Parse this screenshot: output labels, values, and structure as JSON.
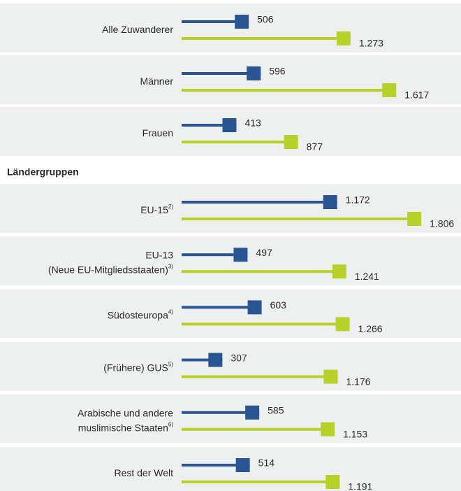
{
  "chart_data": [
    {
      "type": "paired-bar",
      "categories": [
        "Alle Zuwanderer",
        "Männer",
        "Frauen"
      ],
      "category_notes": [
        null,
        null,
        null
      ],
      "xlim": [
        0,
        2000
      ],
      "series": [
        {
          "color": "#2b5592",
          "values": [
            506,
            596,
            413
          ],
          "value_labels": [
            "506",
            "596",
            "413"
          ]
        },
        {
          "color": "#b7d12a",
          "values": [
            1273,
            1617,
            877
          ],
          "value_labels": [
            "1.273",
            "1.617",
            "877"
          ]
        }
      ]
    },
    {
      "type": "paired-bar",
      "title": "Ländergruppen",
      "categories": [
        "EU-15",
        "EU-13\n(Neue EU-Mitgliedsstaaten)",
        "Südosteuropa",
        "(Frühere) GUS",
        "Arabische und andere\nmuslimische Staaten",
        "Rest der Welt"
      ],
      "category_notes": [
        "2)",
        "3)",
        "4)",
        "5)",
        "6)",
        null
      ],
      "xlim": [
        0,
        2000
      ],
      "series": [
        {
          "color": "#2b5592",
          "values": [
            1172,
            497,
            603,
            307,
            585,
            514
          ],
          "value_labels": [
            "1.172",
            "497",
            "603",
            "307",
            "585",
            "514"
          ]
        },
        {
          "color": "#b7d12a",
          "values": [
            1806,
            1241,
            1266,
            1176,
            1153,
            1191
          ],
          "value_labels": [
            "1.806",
            "1.241",
            "1.266",
            "1.176",
            "1.153",
            "1.191"
          ]
        }
      ]
    }
  ]
}
